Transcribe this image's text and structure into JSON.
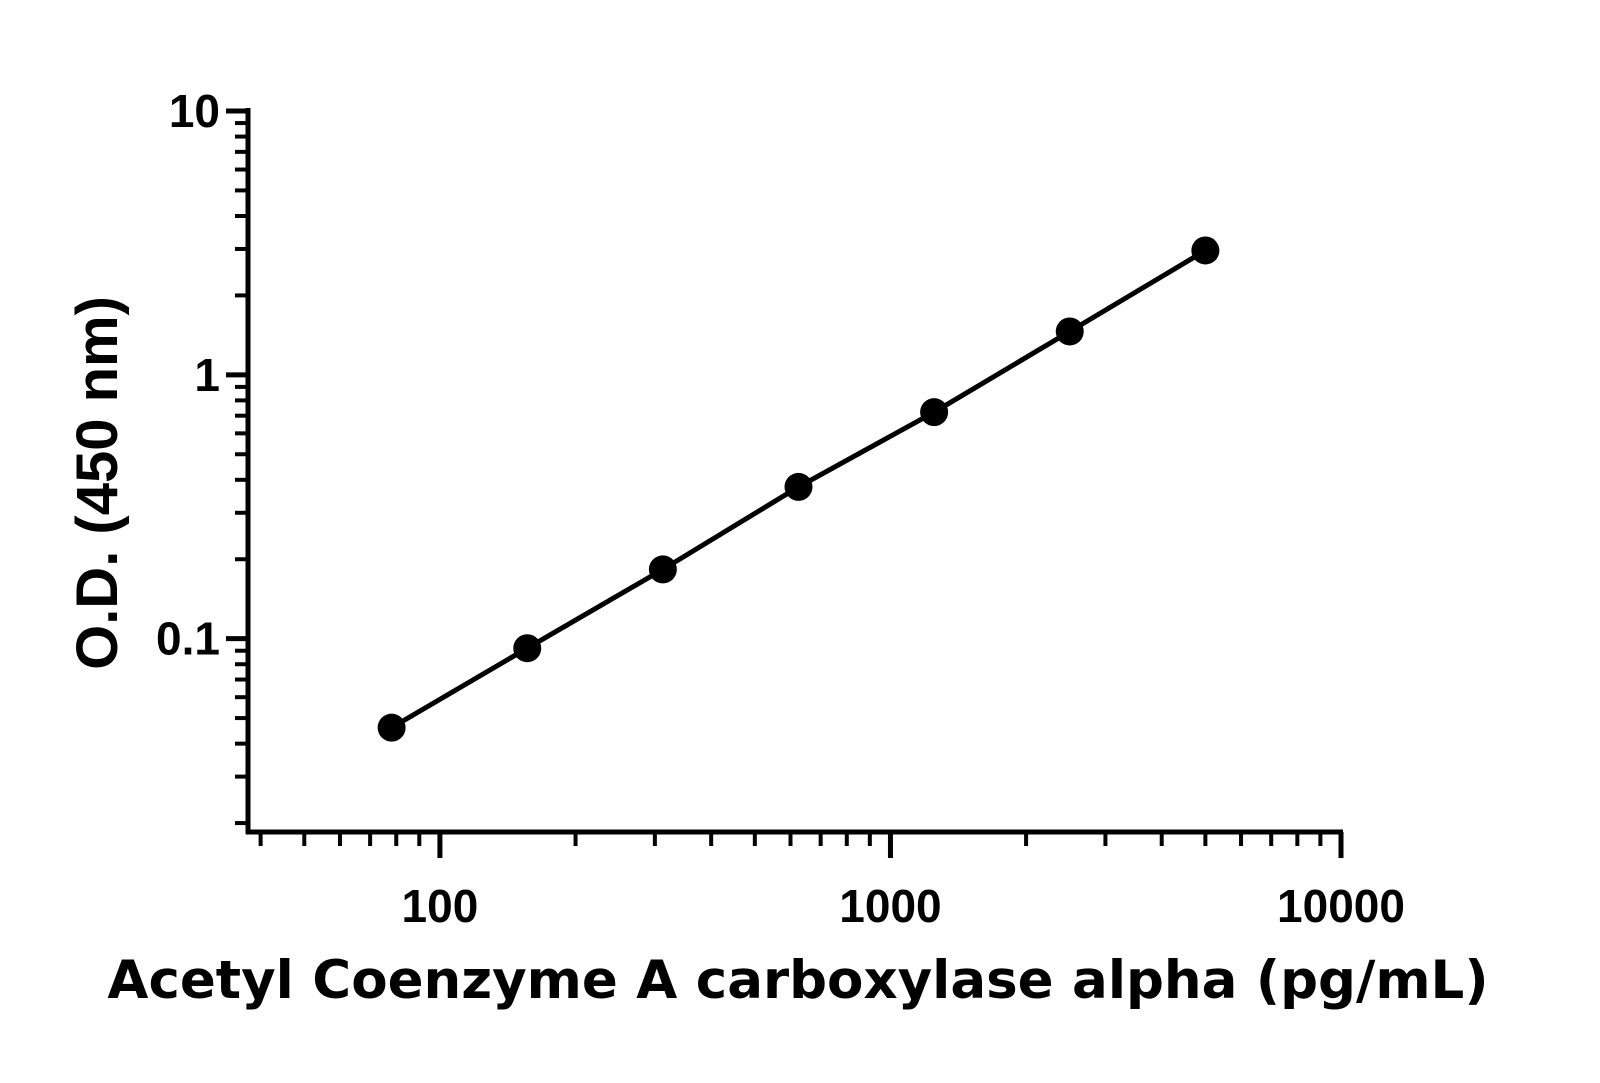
{
  "chart_data": {
    "type": "scatter",
    "title": "",
    "xlabel": "Acetyl Coenzyme A carboxylase alpha (pg/mL)",
    "ylabel": "O.D. (450 nm)",
    "xscale": "log",
    "yscale": "log",
    "xlim": [
      37.5,
      10000
    ],
    "ylim": [
      0.0185,
      10
    ],
    "x_ticks": [
      {
        "value": 100,
        "label": "100"
      },
      {
        "value": 1000,
        "label": "1000"
      },
      {
        "value": 10000,
        "label": "10000"
      }
    ],
    "y_ticks": [
      {
        "value": 0.1,
        "label": "0.1"
      },
      {
        "value": 1,
        "label": "1"
      },
      {
        "value": 10,
        "label": "10"
      }
    ],
    "grid": false,
    "legend": "none",
    "series": [
      {
        "x": [
          78.125,
          156.25,
          312.5,
          625,
          1250,
          2500,
          5000
        ],
        "y": [
          0.046,
          0.092,
          0.183,
          0.376,
          0.722,
          1.46,
          2.96
        ],
        "markers": true,
        "line": true,
        "color": "#000000"
      }
    ]
  }
}
